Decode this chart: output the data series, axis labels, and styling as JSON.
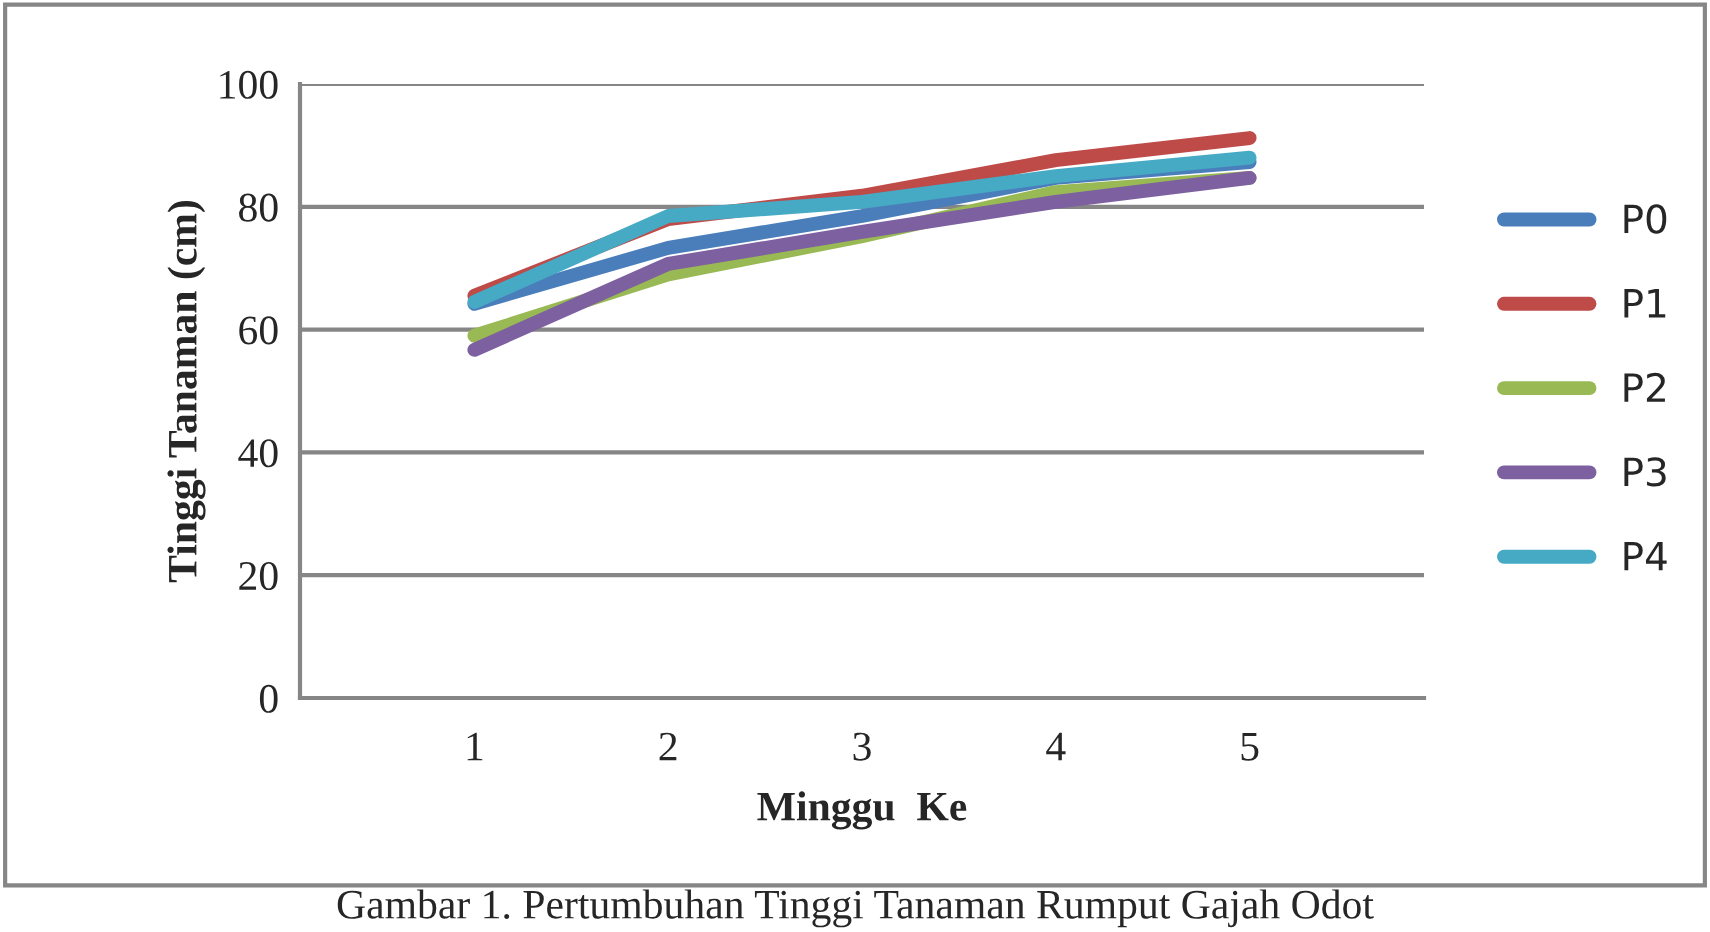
{
  "chart_data": {
    "type": "line",
    "xlabel": "Minggu  Ke",
    "ylabel": "Tinggi Tanaman (cm)",
    "categories": [
      "1",
      "2",
      "3",
      "4",
      "5"
    ],
    "series": [
      {
        "name": "P0",
        "color": "#4a7ebb",
        "values": [
          64.2,
          73.3,
          78.5,
          84.7,
          87.3
        ]
      },
      {
        "name": "P1",
        "color": "#be4b48",
        "values": [
          65.5,
          78,
          81.8,
          87.6,
          91.2
        ]
      },
      {
        "name": "P2",
        "color": "#98b954",
        "values": [
          59,
          69,
          75.2,
          82.4,
          84.7
        ]
      },
      {
        "name": "P3",
        "color": "#7d60a0",
        "values": [
          56.7,
          70.7,
          75.9,
          80.8,
          84.7
        ]
      },
      {
        "name": "P4",
        "color": "#46aac5",
        "values": [
          64.5,
          78.5,
          80.8,
          85,
          88
        ]
      }
    ],
    "ylim": [
      0,
      100
    ],
    "yticks": [
      0,
      20,
      40,
      60,
      80,
      100
    ],
    "grid": "y",
    "legend": "right",
    "marker": "none",
    "line_style": "solid",
    "annotations": [
      "Gambar 1. Pertumbuhan Tinggi Tanaman Rumput Gajah Odot"
    ]
  }
}
